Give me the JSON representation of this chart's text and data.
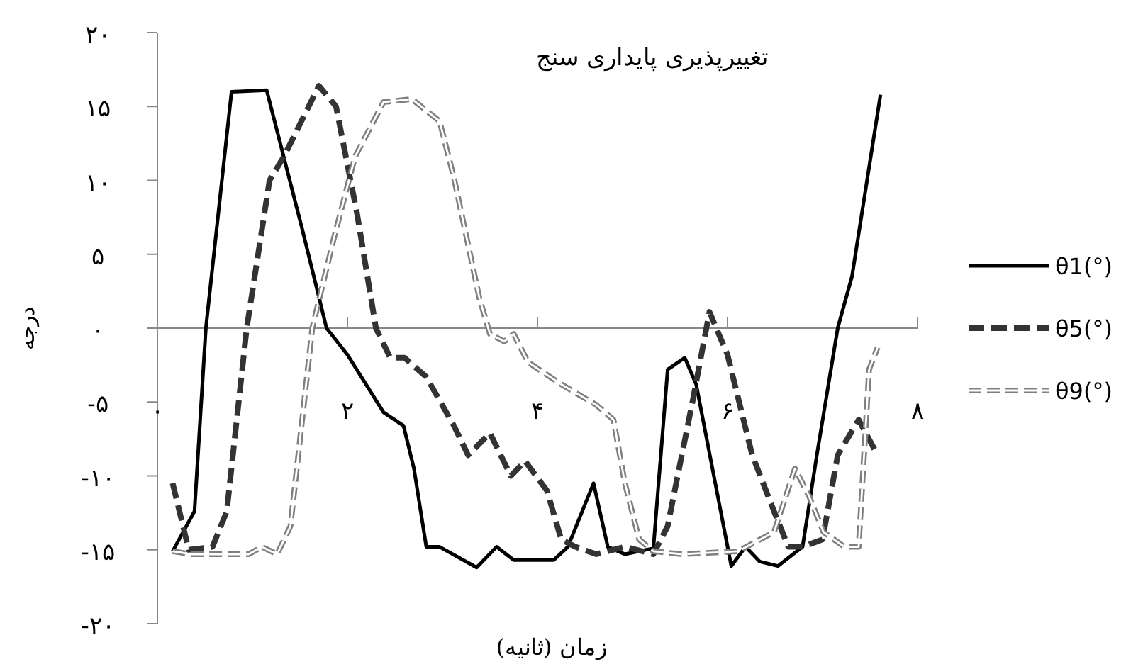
{
  "chart_data": {
    "type": "line",
    "title": "تغییرپذیری پایداری سنج",
    "xlabel": "زمان (ثانیه)",
    "ylabel": "درجه",
    "xlim": [
      0,
      8
    ],
    "ylim": [
      -20,
      20
    ],
    "xticks": [
      {
        "value": 0,
        "label": "۰"
      },
      {
        "value": 2,
        "label": "۲"
      },
      {
        "value": 4,
        "label": "۴"
      },
      {
        "value": 6,
        "label": "۶"
      },
      {
        "value": 8,
        "label": "۸"
      }
    ],
    "yticks": [
      {
        "value": 20,
        "label": "۲۰"
      },
      {
        "value": 15,
        "label": "۱۵"
      },
      {
        "value": 10,
        "label": "۱۰"
      },
      {
        "value": 5,
        "label": "۵"
      },
      {
        "value": 0,
        "label": "۰"
      },
      {
        "value": -5,
        "label": "-۵"
      },
      {
        "value": -10,
        "label": "-۱۰"
      },
      {
        "value": -15,
        "label": "-۱۵"
      },
      {
        "value": -20,
        "label": "-۲۰"
      }
    ],
    "legend": "right",
    "marker": "none",
    "series": [
      {
        "name": "θ1(°)",
        "color": "#000000",
        "line_style": "solid",
        "x": [
          0.16,
          0.39,
          0.51,
          0.78,
          1.15,
          1.52,
          1.78,
          2.0,
          2.38,
          2.59,
          2.7,
          2.83,
          2.97,
          3.36,
          3.57,
          3.75,
          4.17,
          4.32,
          4.59,
          4.74,
          4.92,
          5.22,
          5.37,
          5.55,
          5.67,
          6.04,
          6.19,
          6.34,
          6.53,
          6.79,
          6.94,
          7.16,
          7.31,
          7.61
        ],
        "values": [
          -15.1,
          -12.4,
          0,
          16,
          16.1,
          6.8,
          0,
          -1.8,
          -5.7,
          -6.6,
          -9.5,
          -14.8,
          -14.8,
          -16.2,
          -14.8,
          -15.7,
          -15.7,
          -14.8,
          -10.5,
          -14.8,
          -15.3,
          -14.9,
          -2.8,
          -2.0,
          -3.8,
          -16.1,
          -14.8,
          -15.8,
          -16.1,
          -14.8,
          -8.6,
          0,
          3.5,
          15.8
        ]
      },
      {
        "name": "θ5(°)",
        "color": "#333333",
        "line_style": "dashed",
        "x": [
          0.16,
          0.33,
          0.58,
          0.73,
          0.94,
          1.18,
          1.33,
          1.7,
          1.88,
          2.1,
          2.3,
          2.45,
          2.6,
          2.83,
          3.12,
          3.27,
          3.5,
          3.72,
          3.87,
          4.1,
          4.25,
          4.4,
          4.62,
          4.92,
          5.22,
          5.37,
          5.64,
          5.81,
          6.0,
          6.26,
          6.49,
          6.64,
          6.79,
          7.0,
          7.16,
          7.38,
          7.58
        ],
        "values": [
          -10.5,
          -15,
          -14.8,
          -12.4,
          0,
          10,
          11.6,
          16.4,
          15,
          7.8,
          0,
          -2,
          -2,
          -3.3,
          -6.6,
          -8.6,
          -7.1,
          -10,
          -9,
          -11,
          -14.3,
          -14.8,
          -15.3,
          -14.8,
          -15.3,
          -13.4,
          -4.7,
          1.1,
          -1.8,
          -8.6,
          -12.4,
          -14.8,
          -14.8,
          -14.3,
          -8.6,
          -6.2,
          -8.6
        ]
      },
      {
        "name": "θ9(°)",
        "color": "#7f7f7f",
        "line_style": "dashed",
        "x": [
          0.16,
          0.36,
          0.96,
          1.1,
          1.26,
          1.4,
          1.63,
          1.85,
          2.08,
          2.38,
          2.68,
          2.97,
          3.12,
          3.39,
          3.5,
          3.65,
          3.75,
          3.9,
          4.25,
          4.62,
          4.8,
          4.92,
          5.07,
          5.22,
          5.52,
          6.11,
          6.49,
          6.71,
          6.86,
          7.01,
          7.23,
          7.38,
          7.49,
          7.58
        ],
        "values": [
          -15.1,
          -15.3,
          -15.3,
          -14.8,
          -15.3,
          -13.4,
          0,
          5.9,
          11.6,
          15.3,
          15.5,
          14,
          10.2,
          2,
          -0.4,
          -0.9,
          -0.4,
          -2.3,
          -3.8,
          -5.2,
          -6.2,
          -10.5,
          -14.3,
          -15.1,
          -15.3,
          -15.1,
          -13.8,
          -9.5,
          -11.4,
          -13.8,
          -14.8,
          -14.8,
          -2.8,
          -1.3
        ]
      }
    ]
  }
}
